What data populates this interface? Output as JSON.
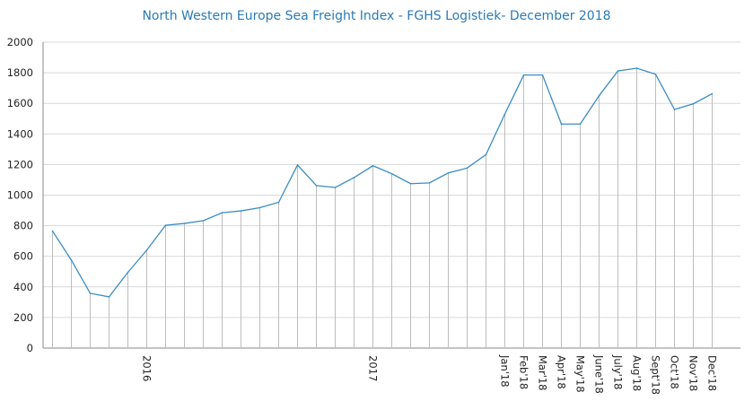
{
  "chart_data": {
    "type": "line",
    "title": "North Western Europe Sea Freight Index - FGHS Logistiek- December  2018",
    "xlabel": "",
    "ylabel": "",
    "ylim": [
      0,
      2000
    ],
    "yticks": [
      0,
      200,
      400,
      600,
      800,
      1000,
      1200,
      1400,
      1600,
      1800,
      2000
    ],
    "grid": true,
    "legend": "none",
    "line_color": "#3a8cc4",
    "categories": [
      "",
      "",
      "",
      "",
      "",
      "2016",
      "",
      "",
      "",
      "",
      "",
      "",
      "",
      "",
      "",
      "",
      "",
      "2017",
      "",
      "",
      "",
      "",
      "",
      "",
      "Jan'18",
      "Feb'18",
      "Mar'18",
      "Apr'18",
      "May'18",
      "June'18",
      "July'18",
      "Aug'18",
      "Sept'18",
      "Oct'18",
      "Nov'18",
      "Dec'18"
    ],
    "values": [
      765,
      575,
      358,
      335,
      495,
      640,
      803,
      815,
      833,
      885,
      897,
      918,
      953,
      1197,
      1062,
      1050,
      1115,
      1192,
      1140,
      1075,
      1080,
      1145,
      1177,
      1265,
      1530,
      1785,
      1785,
      1465,
      1465,
      1650,
      1812,
      1830,
      1790,
      1560,
      1597,
      1663
    ]
  }
}
